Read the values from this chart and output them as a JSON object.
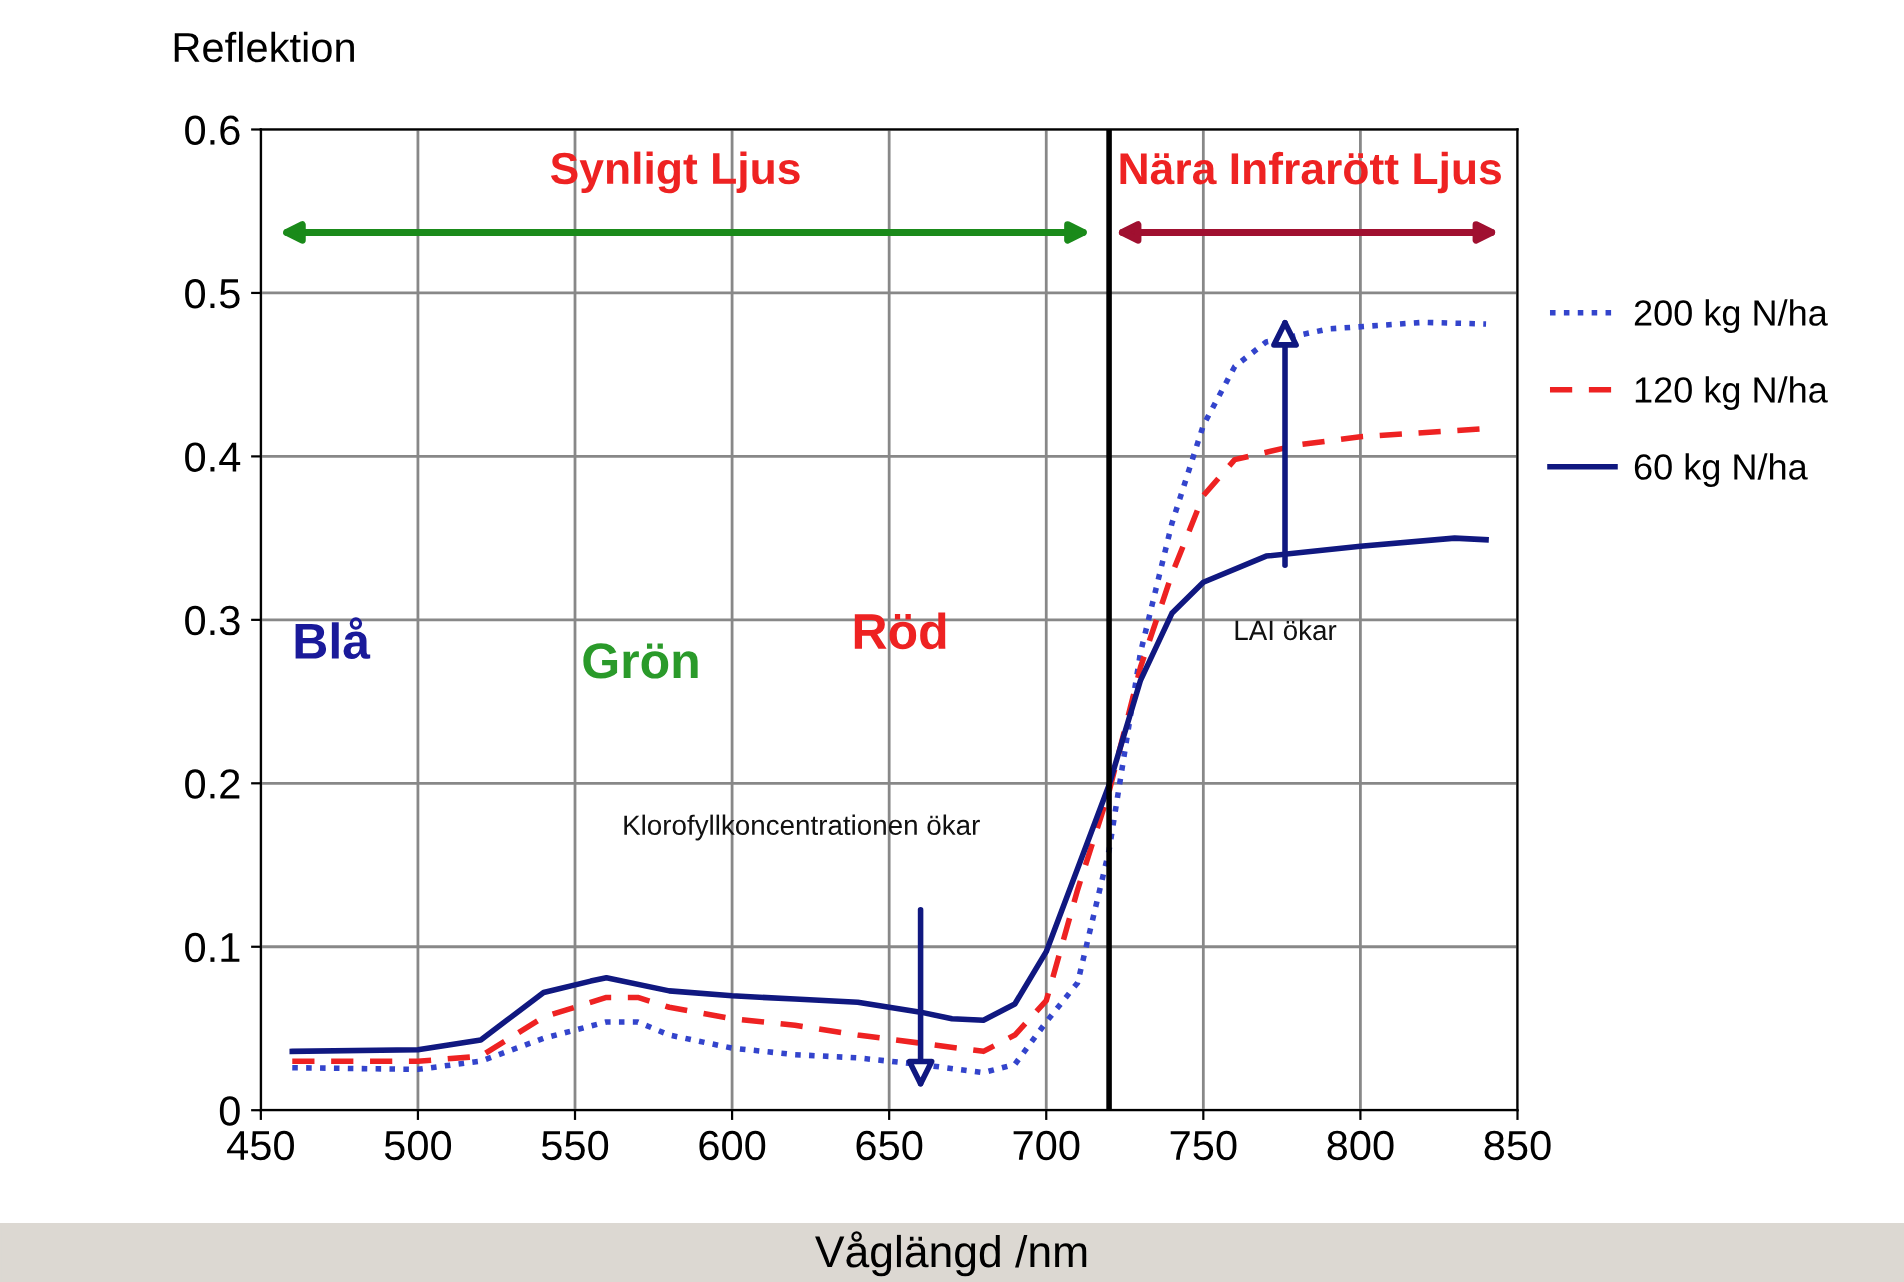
{
  "chart_data": {
    "type": "line",
    "ylabel": "Reflektion",
    "xlabel": "Våglängd /nm",
    "xlim": [
      450,
      850
    ],
    "xticks": [
      450,
      500,
      550,
      600,
      650,
      700,
      750,
      800,
      850
    ],
    "ylim": [
      0,
      0.6
    ],
    "yticks": [
      0,
      0.1,
      0.2,
      0.3,
      0.4,
      0.5,
      0.6
    ],
    "grid": true,
    "legend": "right",
    "series": [
      {
        "name": "200 kg N/ha",
        "color": "#3344cc",
        "line_style": "dotted",
        "x": [
          460,
          500,
          520,
          540,
          560,
          570,
          580,
          600,
          620,
          640,
          660,
          680,
          690,
          700,
          710,
          720,
          730,
          740,
          750,
          760,
          770,
          790,
          820,
          840
        ],
        "values": [
          0.026,
          0.025,
          0.03,
          0.044,
          0.054,
          0.054,
          0.046,
          0.038,
          0.034,
          0.032,
          0.028,
          0.023,
          0.028,
          0.054,
          0.078,
          0.159,
          0.28,
          0.359,
          0.419,
          0.455,
          0.47,
          0.478,
          0.482,
          0.481
        ]
      },
      {
        "name": "120 kg N/ha",
        "color": "#ee2222",
        "line_style": "dashed",
        "x": [
          460,
          500,
          520,
          540,
          560,
          570,
          580,
          600,
          620,
          640,
          660,
          680,
          690,
          700,
          710,
          720,
          730,
          740,
          750,
          760,
          780,
          800,
          840
        ],
        "values": [
          0.03,
          0.03,
          0.033,
          0.057,
          0.069,
          0.069,
          0.063,
          0.056,
          0.052,
          0.046,
          0.041,
          0.036,
          0.046,
          0.067,
          0.135,
          0.195,
          0.271,
          0.328,
          0.376,
          0.398,
          0.407,
          0.412,
          0.417
        ]
      },
      {
        "name": "60 kg N/ha",
        "color": "#101880",
        "line_style": "solid",
        "x": [
          460,
          500,
          520,
          540,
          555,
          560,
          580,
          600,
          620,
          640,
          660,
          670,
          680,
          690,
          700,
          720,
          730,
          740,
          750,
          770,
          800,
          830,
          840
        ],
        "values": [
          0.036,
          0.037,
          0.043,
          0.072,
          0.079,
          0.081,
          0.073,
          0.07,
          0.068,
          0.066,
          0.06,
          0.056,
          0.055,
          0.065,
          0.097,
          0.199,
          0.263,
          0.304,
          0.323,
          0.339,
          0.345,
          0.35,
          0.349
        ]
      }
    ],
    "ref_lines": [
      {
        "axis": "x",
        "value": 720,
        "color": "#000000"
      }
    ],
    "annotations": [
      "Synligt Ljus",
      "Nära Infrarött Ljus",
      "Blå",
      "Grön",
      "Röd",
      "Klorofyllkoncentrationen ökar",
      "LAI ökar"
    ]
  }
}
